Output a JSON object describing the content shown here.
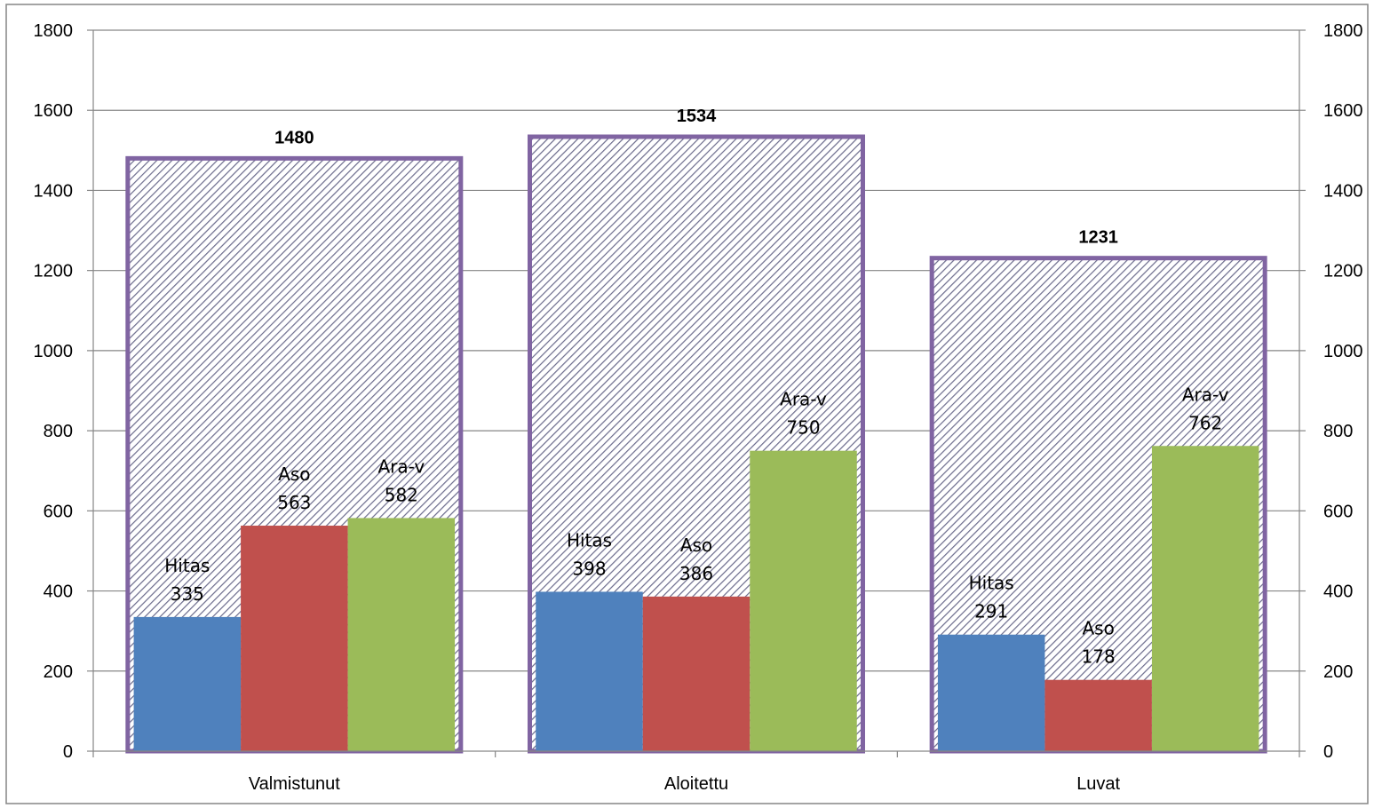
{
  "chart_data": {
    "type": "bar",
    "categories": [
      "Valmistunut",
      "Aloitettu",
      "Luvat"
    ],
    "series": [
      {
        "name": "Hitas",
        "values": [
          335,
          398,
          291
        ],
        "color": "#4F81BD"
      },
      {
        "name": "Aso",
        "values": [
          563,
          386,
          178
        ],
        "color": "#C0504D"
      },
      {
        "name": "Ara-v",
        "values": [
          582,
          750,
          762
        ],
        "color": "#9BBB59"
      }
    ],
    "totals": {
      "values": [
        1480,
        1534,
        1231
      ],
      "outline_color": "#8064A2",
      "fill": "hatched"
    },
    "ylim": [
      0,
      1800
    ],
    "yticks": [
      0,
      200,
      400,
      600,
      800,
      1000,
      1200,
      1400,
      1600,
      1800
    ],
    "secondary_yaxis": true,
    "grid": true,
    "legend": "none"
  }
}
